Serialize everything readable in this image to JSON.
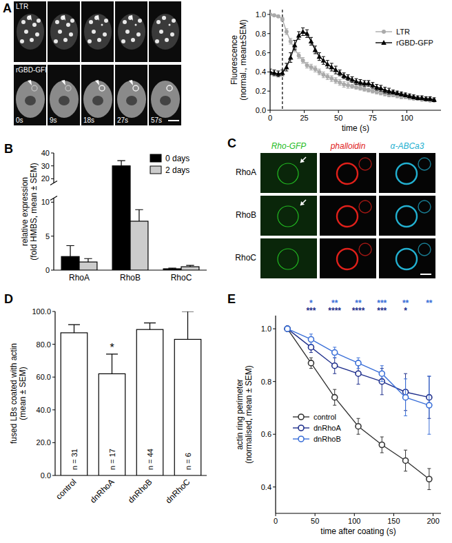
{
  "chart_data": [
    {
      "panel": "A",
      "type": "line",
      "x_label": "time (s)",
      "y_label": [
        "Fluorescence",
        "(normal., mean±SEM)"
      ],
      "xlim": [
        0,
        125
      ],
      "xticks": [
        0,
        25,
        50,
        75,
        100
      ],
      "ylim": [
        0,
        1.05
      ],
      "yticks": [
        {
          "value": 0,
          "label": "0.0"
        },
        0.2,
        0.4,
        0.6,
        0.8,
        {
          "value": 1,
          "label": "1.0"
        }
      ],
      "legend": "top-right",
      "vline": 9,
      "x": [
        0,
        3,
        6,
        9,
        12,
        15,
        18,
        21,
        24,
        27,
        30,
        33,
        36,
        39,
        42,
        45,
        48,
        51,
        54,
        57,
        60,
        63,
        66,
        69,
        72,
        75,
        78,
        81,
        84,
        87,
        90,
        93,
        96,
        99,
        102,
        105,
        108,
        111,
        114,
        117,
        120
      ],
      "series": [
        {
          "name": "LTR",
          "color": "#aaaaaa",
          "marker": "circle",
          "values": [
            1.0,
            0.99,
            0.98,
            0.95,
            0.82,
            0.72,
            0.64,
            0.57,
            0.52,
            0.47,
            0.45,
            0.43,
            0.4,
            0.37,
            0.35,
            0.33,
            0.31,
            0.29,
            0.27,
            0.26,
            0.25,
            0.24,
            0.23,
            0.22,
            0.21,
            0.2,
            0.19,
            0.18,
            0.17,
            0.16,
            0.16,
            0.15,
            0.14,
            0.14,
            0.13,
            0.12,
            0.12,
            0.11,
            0.11,
            0.1,
            0.1
          ],
          "errors": [
            0.01,
            0.01,
            0.01,
            0.02,
            0.03,
            0.03,
            0.03,
            0.03,
            0.03,
            0.03,
            0.03,
            0.03,
            0.03,
            0.03,
            0.03,
            0.03,
            0.03,
            0.03,
            0.03,
            0.03,
            0.02,
            0.02,
            0.02,
            0.02,
            0.02,
            0.02,
            0.02,
            0.02,
            0.02,
            0.02,
            0.02,
            0.02,
            0.02,
            0.02,
            0.02,
            0.01,
            0.01,
            0.01,
            0.01,
            0.01,
            0.01
          ]
        },
        {
          "name": "rGBD-GFP",
          "color": "#000000",
          "marker": "triangle",
          "values": [
            0.4,
            0.39,
            0.38,
            0.39,
            0.45,
            0.55,
            0.68,
            0.78,
            0.82,
            0.8,
            0.72,
            0.63,
            0.56,
            0.52,
            0.48,
            0.45,
            0.42,
            0.39,
            0.36,
            0.34,
            0.32,
            0.3,
            0.29,
            0.28,
            0.28,
            0.26,
            0.24,
            0.23,
            0.21,
            0.2,
            0.19,
            0.18,
            0.17,
            0.16,
            0.15,
            0.14,
            0.13,
            0.13,
            0.12,
            0.12,
            0.11
          ],
          "errors": [
            0.03,
            0.03,
            0.03,
            0.03,
            0.04,
            0.05,
            0.05,
            0.04,
            0.04,
            0.04,
            0.04,
            0.04,
            0.04,
            0.04,
            0.04,
            0.04,
            0.04,
            0.03,
            0.03,
            0.03,
            0.03,
            0.03,
            0.03,
            0.03,
            0.03,
            0.03,
            0.03,
            0.03,
            0.03,
            0.03,
            0.02,
            0.02,
            0.02,
            0.02,
            0.02,
            0.02,
            0.02,
            0.02,
            0.02,
            0.02,
            0.02
          ]
        }
      ]
    },
    {
      "panel": "B",
      "type": "bar",
      "y_label": [
        "relative expression",
        "(fold HMBS, mean ± SEM)"
      ],
      "categories": [
        "RhoA",
        "RhoB",
        "RhoC"
      ],
      "ylim": [
        0,
        40
      ],
      "yticks": [
        0,
        5,
        10,
        20,
        30,
        40
      ],
      "axis_break": [
        10,
        20
      ],
      "legend": "top-right",
      "series": [
        {
          "name": "0 days",
          "color": "#000000",
          "values": [
            2.0,
            30,
            0.2
          ],
          "errors": [
            1.6,
            4,
            0.1
          ]
        },
        {
          "name": "2 days",
          "color": "#cccccc",
          "values": [
            1.2,
            7.2,
            0.5
          ],
          "errors": [
            0.5,
            1.7,
            0.2
          ]
        }
      ]
    },
    {
      "panel": "D",
      "type": "bar",
      "y_label": [
        "fused LBs coated with actin",
        "(mean ± SEM)"
      ],
      "categories": [
        "control",
        "dnRhoA",
        "dnRhoB",
        "dnRhoC"
      ],
      "values": [
        87,
        62,
        89,
        83
      ],
      "errors": [
        5,
        12,
        4,
        17
      ],
      "color": "#ffffff",
      "bar_labels": [
        "n = 31",
        "n = 17",
        "n = 44",
        "n = 6"
      ],
      "annotations": [
        {
          "text": "*",
          "category": 1
        }
      ],
      "ylim": [
        0,
        100
      ],
      "yticks": [
        {
          "value": 0,
          "label": "0.0"
        },
        {
          "value": 20,
          "label": "20.0"
        },
        {
          "value": 40,
          "label": "40.0"
        },
        {
          "value": 60,
          "label": "60.0"
        },
        {
          "value": 80,
          "label": "80.0"
        },
        {
          "value": 100,
          "label": "100.0"
        }
      ]
    },
    {
      "panel": "E",
      "type": "line",
      "x_label": "time after coating (s)",
      "y_label": [
        "actin ring perimeter",
        "(normalised, mean ± SEM)"
      ],
      "xlim": [
        0,
        210
      ],
      "xticks": [
        0,
        50,
        100,
        150,
        200
      ],
      "ylim": [
        0.3,
        1.05
      ],
      "yticks": [
        0.4,
        0.6,
        0.8,
        {
          "value": 1,
          "label": "1.0"
        }
      ],
      "legend": "bottom-left",
      "x": [
        15,
        45,
        75,
        105,
        135,
        165,
        195
      ],
      "series": [
        {
          "name": "control",
          "color": "#333333",
          "marker": "open-circle",
          "values": [
            1.0,
            0.87,
            0.74,
            0.63,
            0.56,
            0.5,
            0.43
          ],
          "errors": [
            0,
            0.02,
            0.03,
            0.03,
            0.03,
            0.04,
            0.04
          ]
        },
        {
          "name": "dnRhoA",
          "color": "#1f2f8c",
          "marker": "open-circle",
          "values": [
            1.0,
            0.93,
            0.86,
            0.83,
            0.8,
            0.76,
            0.74
          ],
          "errors": [
            0,
            0.02,
            0.03,
            0.04,
            0.05,
            0.07,
            0.08
          ]
        },
        {
          "name": "dnRhoB",
          "color": "#3a6fd8",
          "marker": "open-circle",
          "values": [
            1.0,
            0.96,
            0.91,
            0.87,
            0.83,
            0.74,
            0.71
          ],
          "errors": [
            0,
            0.02,
            0.02,
            0.02,
            0.03,
            0.07,
            0.11
          ]
        }
      ],
      "annotations": [
        {
          "text": "*",
          "x": 45,
          "series": 2
        },
        {
          "text": "**",
          "x": 75,
          "series": 2
        },
        {
          "text": "**",
          "x": 105,
          "series": 2
        },
        {
          "text": "***",
          "x": 135,
          "series": 2
        },
        {
          "text": "**",
          "x": 165,
          "series": 2
        },
        {
          "text": "**",
          "x": 195,
          "series": 2
        },
        {
          "text": "***",
          "x": 45,
          "series": 1
        },
        {
          "text": "****",
          "x": 75,
          "series": 1
        },
        {
          "text": "****",
          "x": 105,
          "series": 1
        },
        {
          "text": "***",
          "x": 135,
          "series": 1
        },
        {
          "text": "*",
          "x": 165,
          "series": 1
        }
      ]
    }
  ],
  "image_panels": {
    "A": {
      "rows": [
        "LTR",
        "rGBD-GFP"
      ],
      "times": [
        "0s",
        "9s",
        "18s",
        "27s",
        "57s"
      ]
    },
    "C": {
      "panel": "C",
      "columns": [
        {
          "label": "Rho-GFP",
          "color": "#22bb22"
        },
        {
          "label": "phalloidin",
          "color": "#e0201a"
        },
        {
          "label": "α-ABCa3",
          "color": "#22b0d0"
        }
      ],
      "rows": [
        "RhoA",
        "RhoB",
        "RhoC"
      ]
    }
  }
}
